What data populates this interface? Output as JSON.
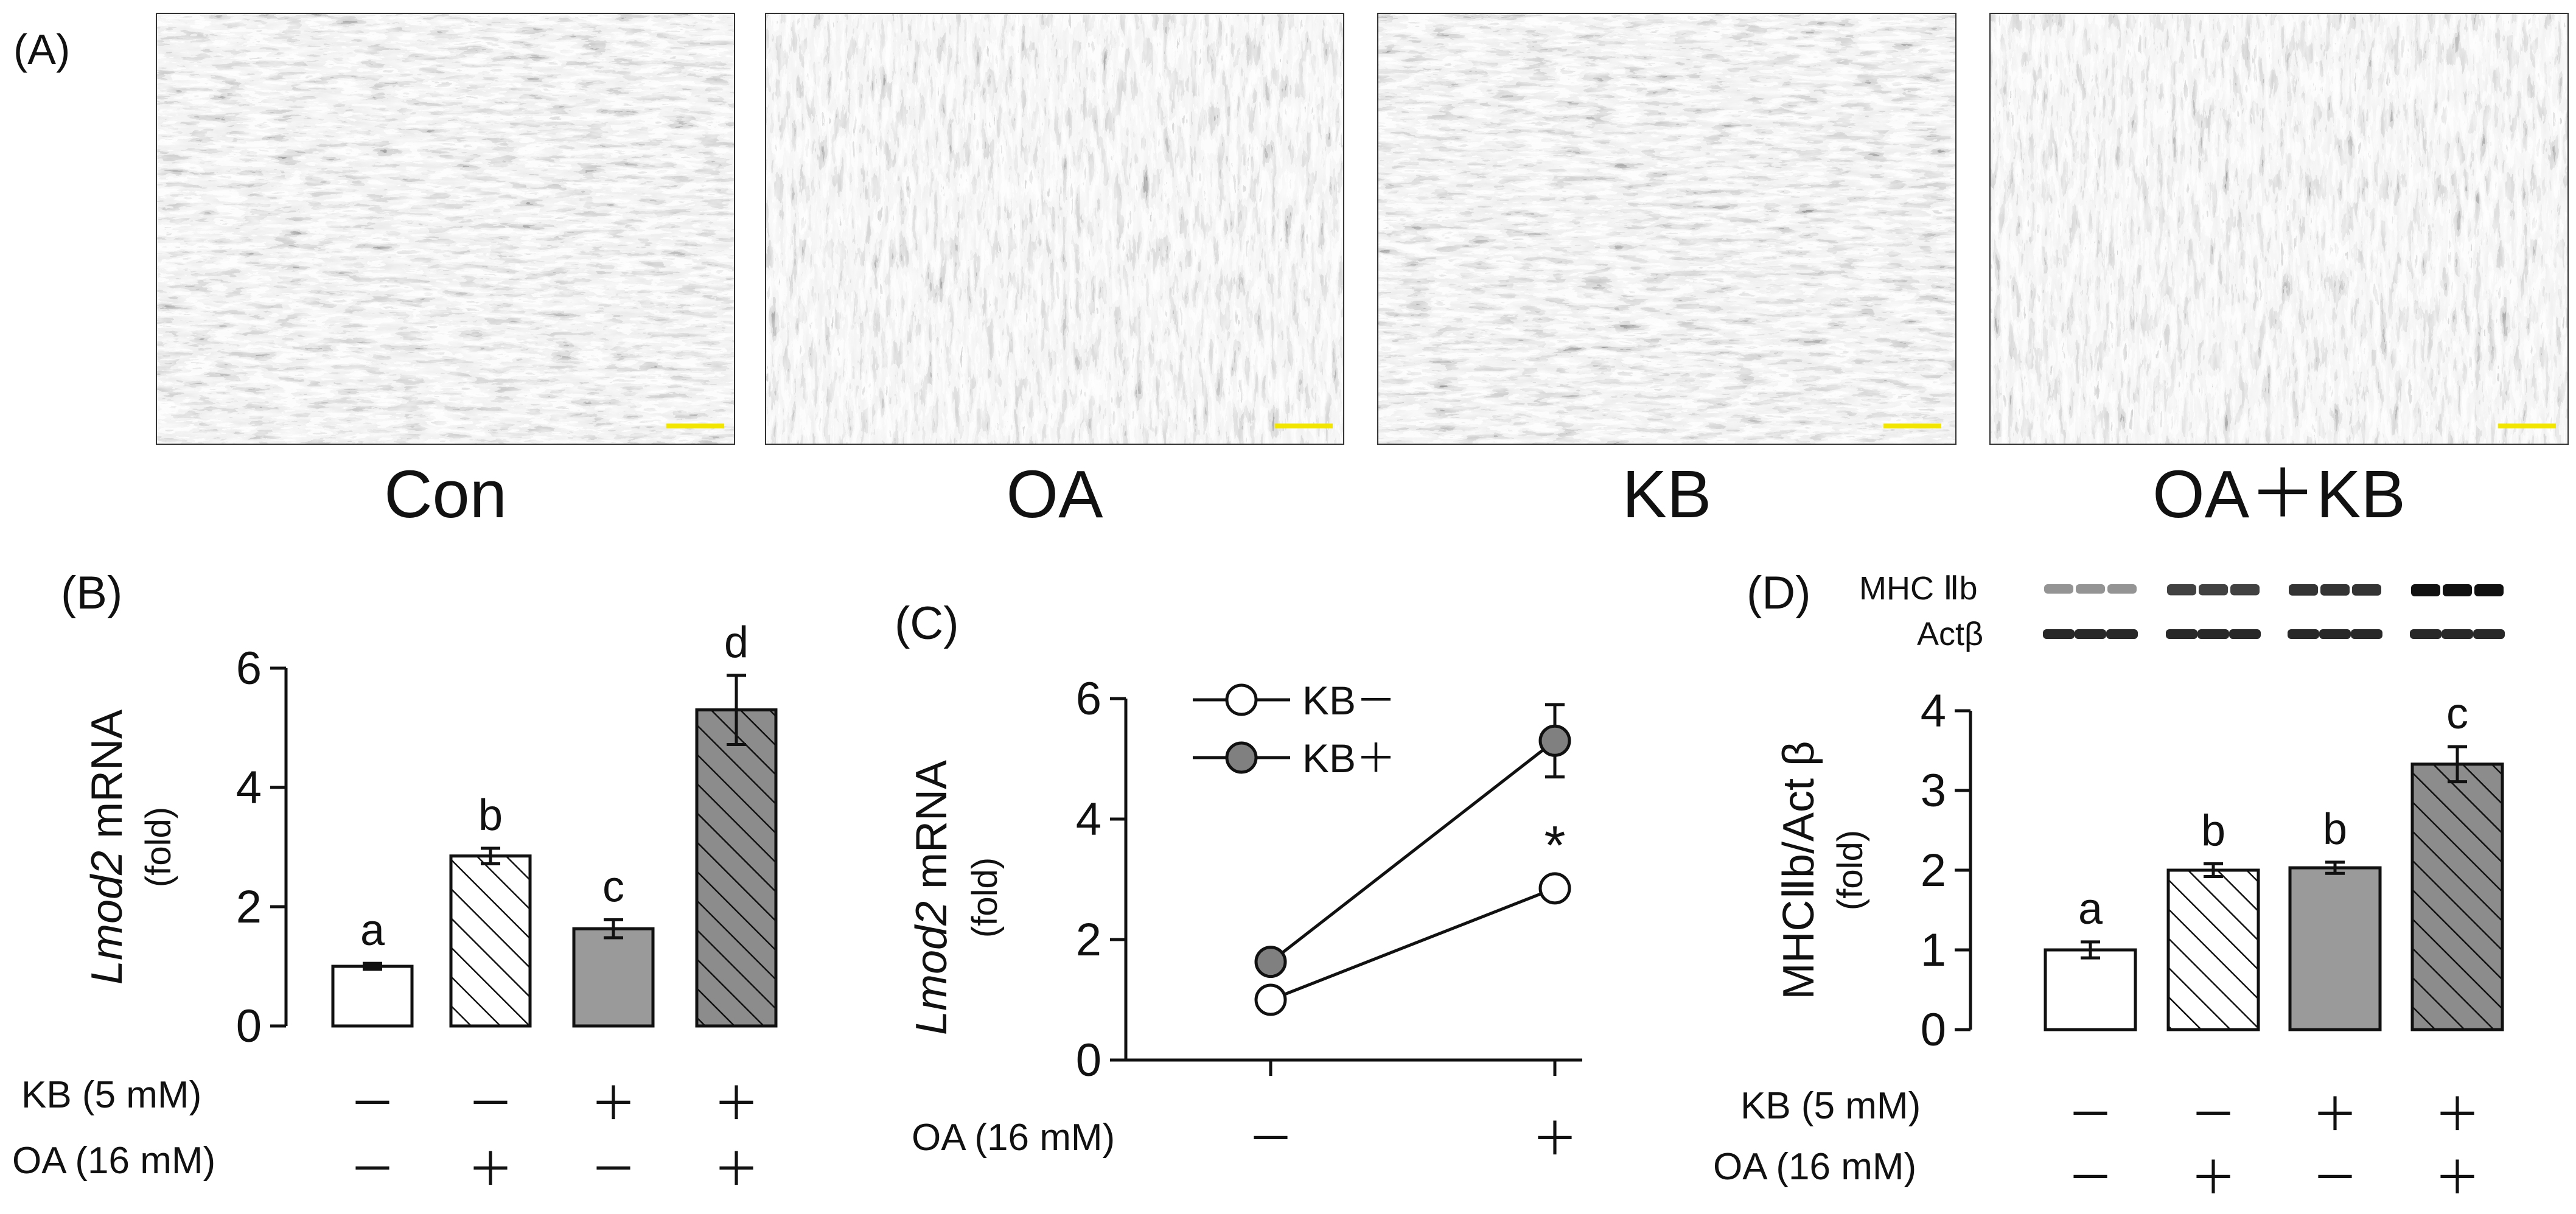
{
  "panel_labels": {
    "A": "(A)",
    "B": "(B)",
    "C": "(C)",
    "D": "(D)"
  },
  "micrographs": [
    {
      "label": "Con",
      "scale_bar_color": "#f2e600"
    },
    {
      "label": "OA",
      "scale_bar_color": "#f2e600"
    },
    {
      "label": "KB",
      "scale_bar_color": "#f2e600"
    },
    {
      "label": "OA＋KB",
      "scale_bar_color": "#f2e600"
    }
  ],
  "conditions": {
    "kb_label": "KB (5 mM)",
    "oa_label": "OA (16 mM)",
    "kb_signs": [
      "－",
      "－",
      "＋",
      "＋"
    ],
    "oa_signs": [
      "－",
      "＋",
      "－",
      "＋"
    ]
  },
  "blot": {
    "rows": [
      "MHC Ⅱb",
      "Actβ"
    ]
  },
  "colors": {
    "white_fill": "#ffffff",
    "gray_fill": "#9a9a9a",
    "gray_hatch_fill": "#8c8c8c",
    "axis": "#111111"
  },
  "chart_data": [
    {
      "panel": "B",
      "type": "bar",
      "ylabel_italic": "Lmod2",
      "ylabel_rest": " mRNA",
      "ylabel_unit": "(fold)",
      "ylim": [
        0,
        6
      ],
      "yticks": [
        "0",
        "2",
        "4",
        "6"
      ],
      "values": [
        1.0,
        2.85,
        1.63,
        5.3
      ],
      "errors": [
        0.05,
        0.13,
        0.15,
        0.58
      ],
      "letters": [
        "a",
        "b",
        "c",
        "d"
      ],
      "patterns": [
        "white",
        "white-hatch",
        "gray",
        "gray-hatch"
      ]
    },
    {
      "panel": "C",
      "type": "line",
      "ylabel_italic": "Lmod2",
      "ylabel_rest": " mRNA",
      "ylabel_unit": "(fold)",
      "ylim": [
        0,
        6
      ],
      "yticks": [
        "0",
        "2",
        "4",
        "6"
      ],
      "x_label": "OA (16 mM)",
      "x_signs": [
        "－",
        "＋"
      ],
      "series": [
        {
          "name": "KB－",
          "marker": "open",
          "values": [
            1.0,
            2.85
          ],
          "errors": [
            0.05,
            0.1
          ]
        },
        {
          "name": "KB＋",
          "marker": "filled",
          "values": [
            1.63,
            5.3
          ],
          "errors": [
            0.1,
            0.6
          ]
        }
      ],
      "annotation": "*"
    },
    {
      "panel": "D",
      "type": "bar",
      "ylabel": "MHCⅡb/Act β",
      "ylabel_unit": "(fold)",
      "ylim": [
        0,
        4
      ],
      "yticks": [
        "0",
        "1",
        "2",
        "3",
        "4"
      ],
      "values": [
        1.0,
        2.0,
        2.03,
        3.33
      ],
      "errors": [
        0.1,
        0.08,
        0.07,
        0.22
      ],
      "letters": [
        "a",
        "b",
        "b",
        "c"
      ],
      "patterns": [
        "white",
        "white-hatch",
        "gray",
        "gray-hatch"
      ]
    }
  ]
}
